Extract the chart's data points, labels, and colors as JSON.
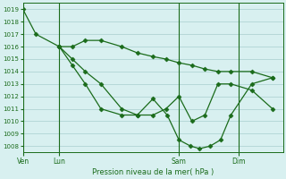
{
  "title": "Pression niveau de la mer( hPa )",
  "ylim": [
    1007.5,
    1019.5
  ],
  "yticks": [
    1008,
    1009,
    1010,
    1011,
    1012,
    1013,
    1014,
    1015,
    1016,
    1017,
    1018,
    1019
  ],
  "bg_color": "#d8f0f0",
  "grid_color": "#a8cece",
  "line_color": "#1a6b1a",
  "marker_color": "#1a6b1a",
  "xtick_labels": [
    "Ven",
    "Lun",
    "Sam",
    "Dim"
  ],
  "xtick_positions": [
    0.0,
    0.14,
    0.6,
    0.83
  ],
  "vline_positions": [
    0.0,
    0.14,
    0.6,
    0.83
  ],
  "xlim": [
    0.0,
    1.0
  ],
  "series1_x": [
    0.0,
    0.05,
    0.14,
    0.19,
    0.24,
    0.3,
    0.38,
    0.44,
    0.5,
    0.55,
    0.6,
    0.65,
    0.7,
    0.75,
    0.8,
    0.88,
    0.96
  ],
  "series1_y": [
    1019,
    1017,
    1016,
    1016,
    1016.5,
    1016.5,
    1016,
    1015.5,
    1015.2,
    1015.0,
    1014.7,
    1014.5,
    1014.2,
    1014.0,
    1014.0,
    1014.0,
    1013.5
  ],
  "series2_x": [
    0.14,
    0.19,
    0.24,
    0.3,
    0.38,
    0.44,
    0.5,
    0.55,
    0.6,
    0.65,
    0.7,
    0.75,
    0.8,
    0.88,
    0.96
  ],
  "series2_y": [
    1016,
    1015,
    1014,
    1013,
    1011,
    1010.5,
    1010.5,
    1011,
    1012,
    1010,
    1010.5,
    1013,
    1013,
    1012.5,
    1011
  ],
  "series3_x": [
    0.14,
    0.19,
    0.24,
    0.3,
    0.38,
    0.44,
    0.5,
    0.555,
    0.6,
    0.645,
    0.68,
    0.72,
    0.76,
    0.8,
    0.88,
    0.96
  ],
  "series3_y": [
    1016,
    1014.5,
    1013,
    1011,
    1010.5,
    1010.5,
    1011.8,
    1010.5,
    1008.5,
    1008,
    1007.8,
    1008,
    1008.5,
    1010.5,
    1013,
    1013.5
  ]
}
